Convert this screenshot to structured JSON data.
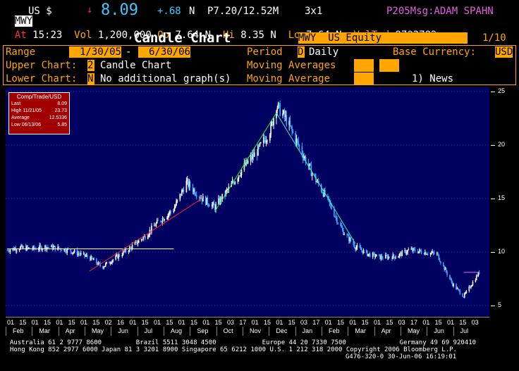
{
  "header": {
    "ticker": "MWY",
    "currency": "US $",
    "arrow": "↓",
    "last_price": "8.09",
    "change": "+.68",
    "change_flag": "N",
    "p_info": "P7.20/12.52M",
    "size": "3x1",
    "msg": "P205Msg:ADAM SPAHN",
    "at_label": "At",
    "time": "15:23",
    "vol_label": "Vol",
    "volume": "1,200,000",
    "op_label": "Op",
    "open": "7.64",
    "op_flag": "N",
    "hi_label": "Hi",
    "high": "8.35",
    "hi_flag": "N",
    "lo_label": "Lo",
    "low": "7.64",
    "lo_flag": "N",
    "valtrd_label": "ValTrd",
    "valtrd": "9703782"
  },
  "title_bar": {
    "title": "Candle Chart",
    "security": "MWY  US Equity",
    "page": "1/10"
  },
  "controls": {
    "range_label": "Range",
    "range_start": "1/30/05",
    "range_dash": "-",
    "range_end": "6/30/06",
    "period_label": "Period",
    "period_code": "D",
    "period_value": "Daily",
    "base_currency_label": "Base Currency:",
    "base_currency": "USD",
    "upper_label": "Upper Chart:",
    "upper_code": "2",
    "upper_value": "Candle Chart",
    "ma_label_1": "Moving Averages",
    "lower_label": "Lower Chart:",
    "lower_code": "N",
    "lower_value": "No additional graph(s)",
    "ma_label_2": "Moving Average",
    "news": "1) News"
  },
  "legend": {
    "title": "Comp/Trade/USD",
    "rows": [
      {
        "label": "Last",
        "value": "8.09"
      },
      {
        "label": "High  11/21/05",
        "value": "23.73"
      },
      {
        "label": "Average",
        "value": "12.5336"
      },
      {
        "label": "Low  06/13/06",
        "value": "5.85"
      }
    ]
  },
  "chart_data": {
    "type": "candlestick",
    "title": "Candle Chart",
    "ylim": [
      5,
      25
    ],
    "y_ticks": [
      "5",
      "10",
      "15",
      "20",
      "25"
    ],
    "x_day_ticks": [
      "01",
      "15",
      "01",
      "15",
      "01",
      "15",
      "01",
      "15",
      "02",
      "16",
      "01",
      "15",
      "01",
      "15",
      "01",
      "15",
      "01",
      "15",
      "03",
      "17",
      "01",
      "15",
      "01",
      "15",
      "03",
      "17",
      "01",
      "15",
      "01",
      "15",
      "01",
      "15",
      "03",
      "17",
      "01",
      "15",
      "01",
      "15",
      "03"
    ],
    "x_month_labels": [
      "Feb",
      "Mar",
      "Apr",
      "May",
      "Jun",
      "Jul",
      "Aug",
      "Sep",
      "Oct",
      "Nov",
      "Dec",
      "Jan",
      "Feb",
      "Mar",
      "Apr",
      "May",
      "Jun",
      "Jul"
    ],
    "series": [
      {
        "x": [
          "2005-02-01",
          "2005-02-15",
          "2005-03-01",
          "2005-03-15",
          "2005-04-01",
          "2005-04-15",
          "2005-05-01",
          "2005-05-15",
          "2005-06-01",
          "2005-06-15",
          "2005-07-01",
          "2005-07-15",
          "2005-08-01",
          "2005-08-15",
          "2005-09-01",
          "2005-09-15",
          "2005-10-01",
          "2005-10-15",
          "2005-11-01",
          "2005-11-15",
          "2005-11-21",
          "2005-12-01",
          "2005-12-15",
          "2006-01-01",
          "2006-01-15",
          "2006-02-01",
          "2006-02-15",
          "2006-03-01",
          "2006-03-15",
          "2006-04-01",
          "2006-04-15",
          "2006-05-01",
          "2006-05-15",
          "2006-06-01",
          "2006-06-13",
          "2006-06-30"
        ],
        "close": [
          10.2,
          10.4,
          10.3,
          10.5,
          10.3,
          10.0,
          9.5,
          8.6,
          9.6,
          10.4,
          11.5,
          12.8,
          14.0,
          16.5,
          15.0,
          14.2,
          16.0,
          17.8,
          19.5,
          21.5,
          23.73,
          22.5,
          20.0,
          17.0,
          15.0,
          12.0,
          10.5,
          9.8,
          9.5,
          9.6,
          10.2,
          10.0,
          9.8,
          7.0,
          5.85,
          8.09
        ]
      }
    ],
    "trendlines": [
      {
        "color": "#ffffff",
        "from": [
          "2005-02-01",
          10.3
        ],
        "to": [
          "2005-08-01",
          10.3
        ]
      },
      {
        "color": "#ff2020",
        "from": [
          "2005-05-01",
          8.2
        ],
        "to": [
          "2005-09-01",
          15.0
        ]
      },
      {
        "color": "#20ff20",
        "from": [
          "2005-09-15",
          13.8
        ],
        "to": [
          "2005-11-21",
          23.0
        ]
      },
      {
        "color": "#20ffb0",
        "from": [
          "2005-11-21",
          23.0
        ],
        "to": [
          "2006-02-15",
          10.8
        ]
      },
      {
        "color": "#ff60ff",
        "from": [
          "2006-06-13",
          8.1
        ],
        "to": [
          "2006-06-30",
          8.1
        ]
      }
    ]
  },
  "footer": {
    "line1": "Australia 61 2 9777 8600         Brazil 5511 3048 4500            Europe 44 20 7330 7500              Germany 49 69 920410",
    "line2": "Hong Kong 852 2977 6000 Japan 81 3 3201 8900 Singapore 65 6212 1000 U.S. 1 212 318 2000 Copyright 2006 Bloomberg L.P.",
    "line3": "G476-320-0 30-Jun-06 16:19:01"
  },
  "colors": {
    "amber": "#ffa500",
    "panel": "#000060",
    "legend_bg": "#a00000",
    "price": "#40c8ff",
    "down_arrow": "#ff3030",
    "msg": "#e060e0"
  }
}
